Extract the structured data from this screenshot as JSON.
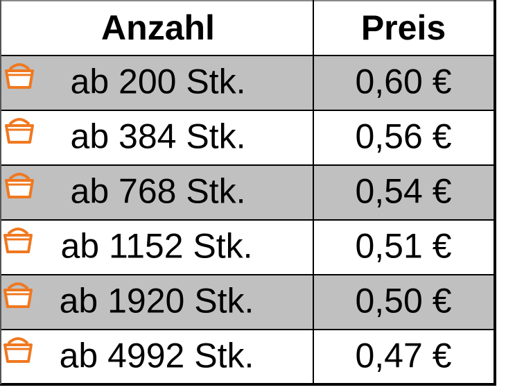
{
  "table": {
    "header": [
      "Anzahl",
      "Preis"
    ],
    "rows": [
      [
        "ab 200 Stk.",
        "0,60 €"
      ],
      [
        "ab 384 Stk.",
        "0,56 €"
      ],
      [
        "ab 768 Stk.",
        "0,54 €"
      ],
      [
        "ab 1152 Stk.",
        "0,51 €"
      ],
      [
        "ab 1920 Stk.",
        "0,50 €"
      ],
      [
        "ab 4992 Stk.",
        "0,47 €"
      ]
    ]
  }
}
